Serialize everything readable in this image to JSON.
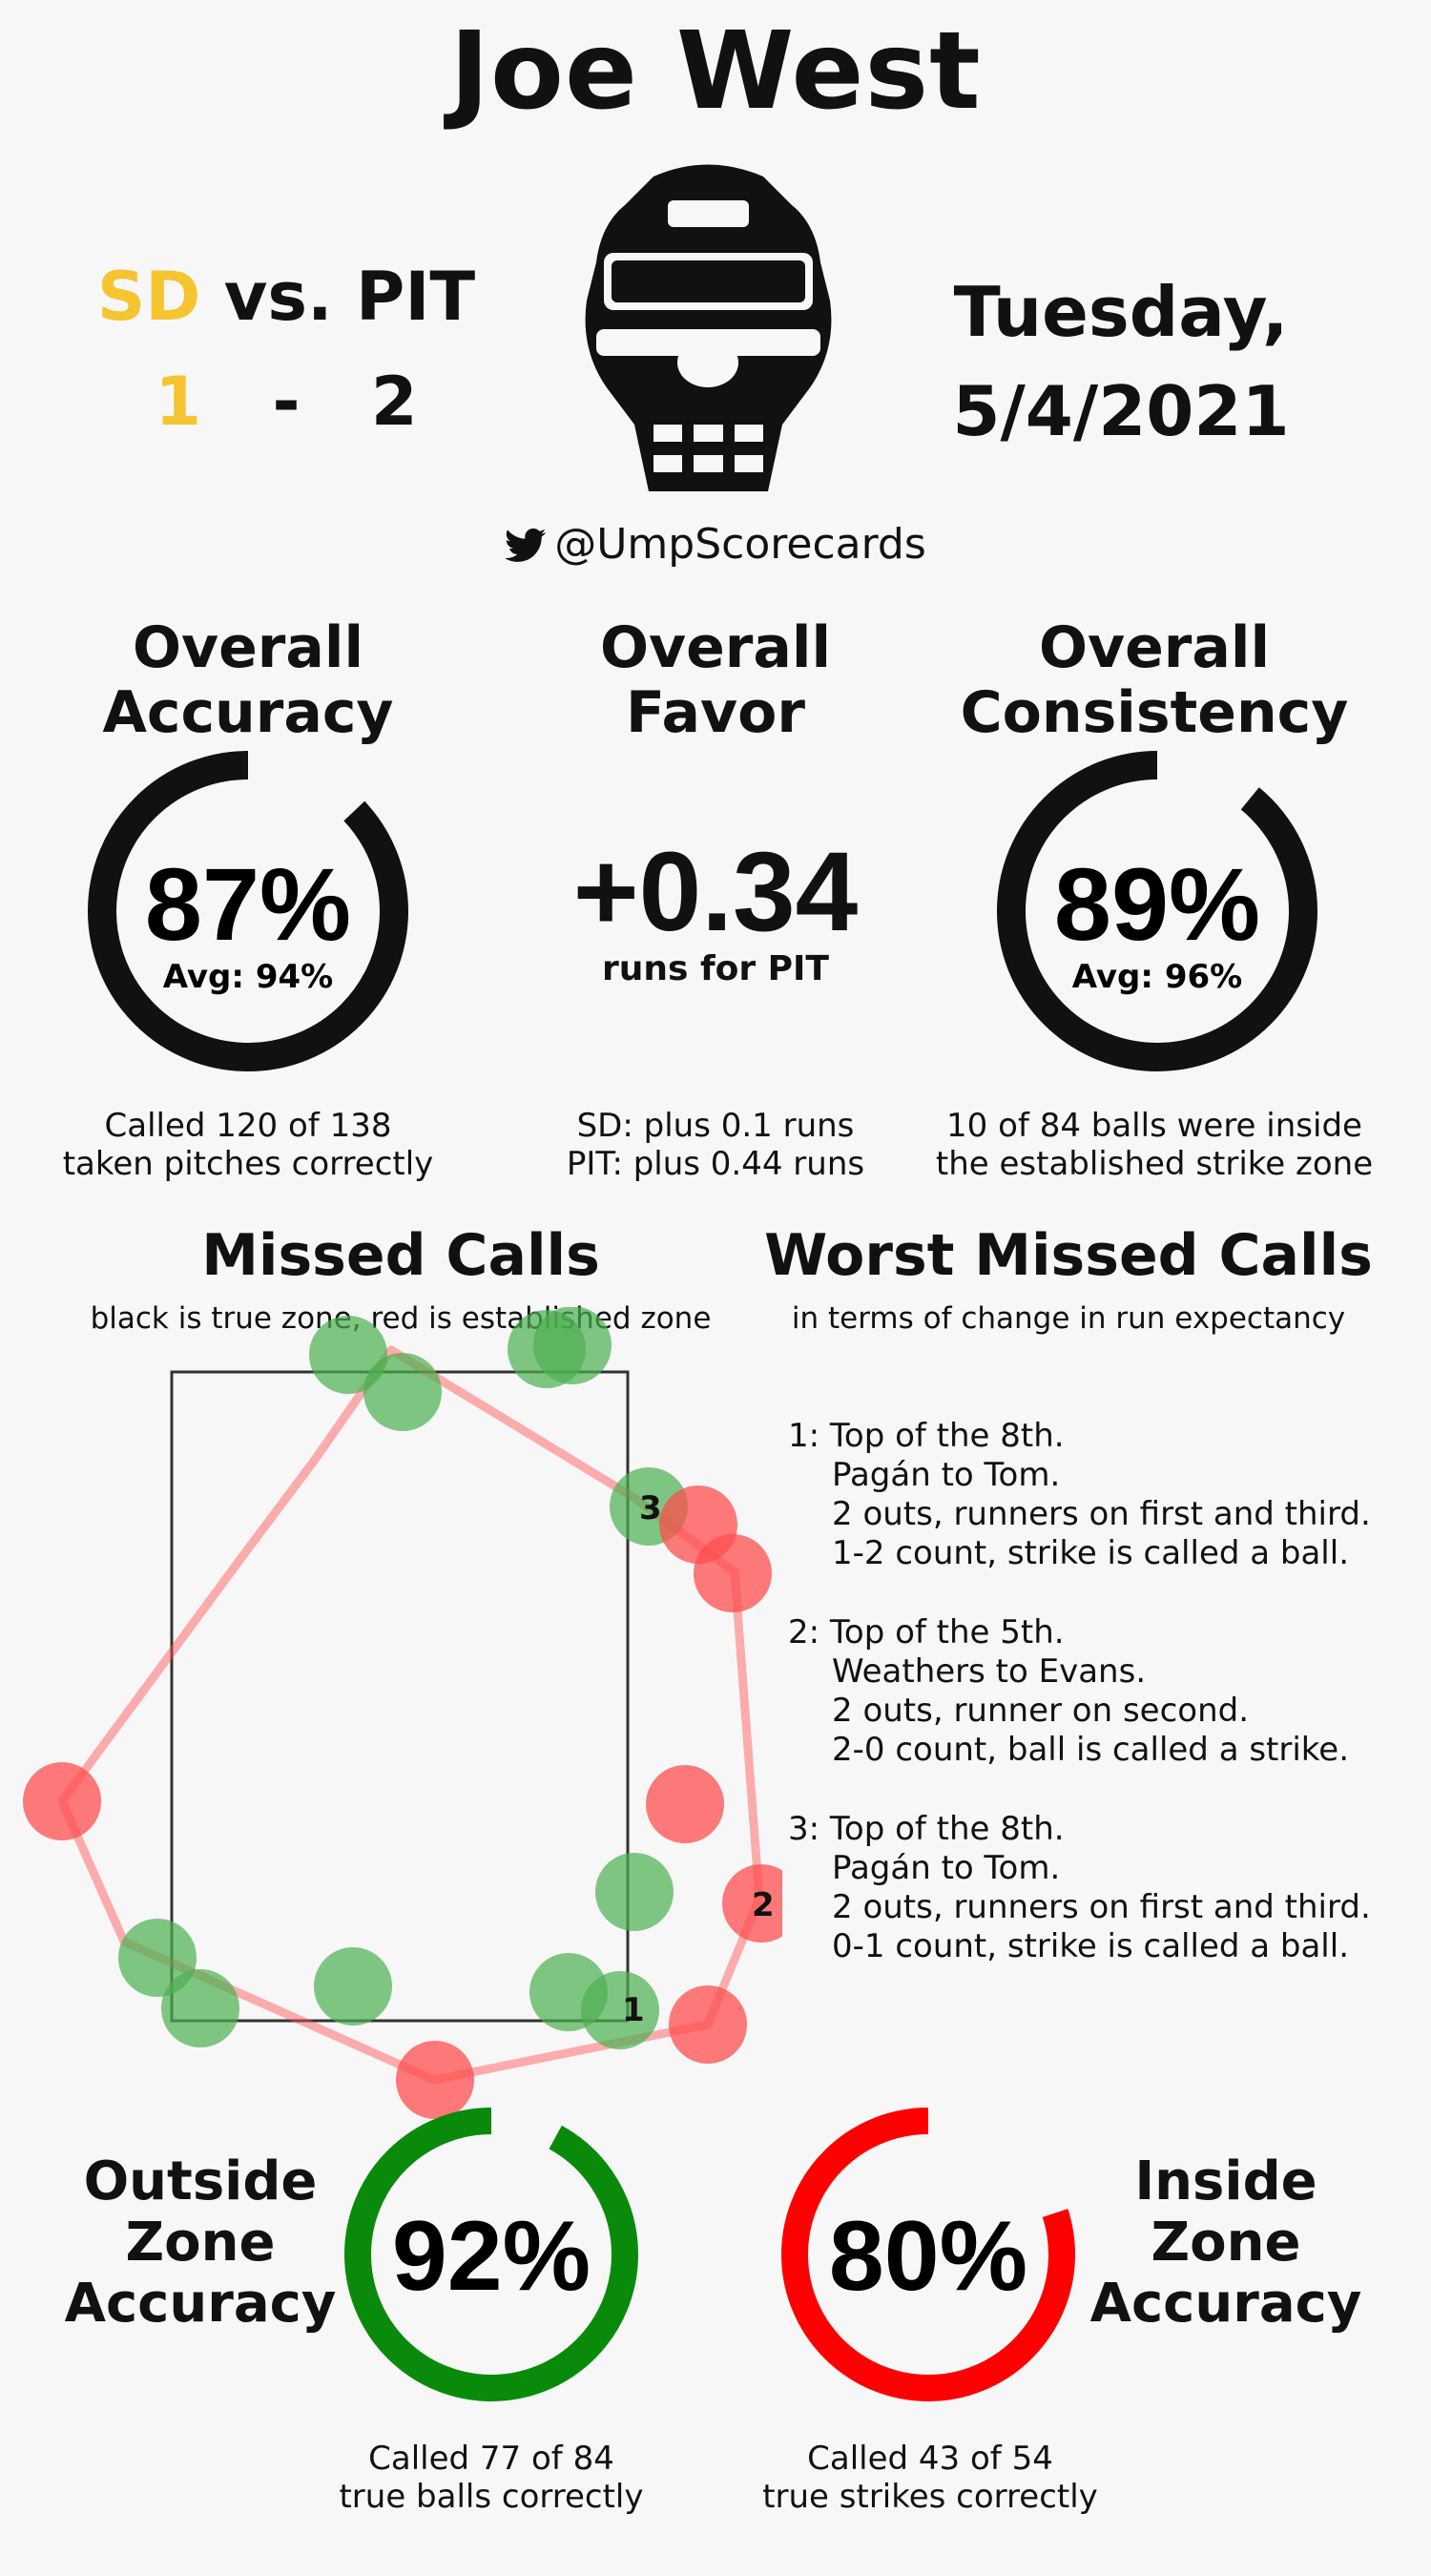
{
  "header": {
    "umpire": "Joe West",
    "away_team": "SD",
    "vs_text": "vs.",
    "home_team": "PIT",
    "away_score": "1",
    "dash": "-",
    "home_score": "2",
    "date_line1": "Tuesday,",
    "date_line2": "5/4/2021",
    "handle": "@UmpScorecards",
    "twitter_icon": "twitter-bird-icon",
    "mask_icon": "umpire-mask-icon"
  },
  "colors": {
    "gold": "#f5c431",
    "green": "#0a8a0a",
    "red": "#ff0000",
    "missed_green": "#4caf50",
    "missed_red": "#ff4d4d"
  },
  "accuracy": {
    "title_line1": "Overall",
    "title_line2": "Accuracy",
    "value": "87%",
    "fraction": 0.87,
    "avg": "Avg: 94%",
    "caption_line1": "Called 120 of 138",
    "caption_line2": "taken pitches correctly"
  },
  "favor": {
    "title_line1": "Overall",
    "title_line2": "Favor",
    "value": "+0.34",
    "unit": "runs for PIT",
    "caption_line1": "SD: plus 0.1 runs",
    "caption_line2": "PIT: plus 0.44 runs"
  },
  "consistency": {
    "title_line1": "Overall",
    "title_line2": "Consistency",
    "value": "89%",
    "fraction": 0.89,
    "avg": "Avg: 96%",
    "caption_line1": "10 of 84 balls were inside",
    "caption_line2": "the established strike zone"
  },
  "missed": {
    "title": "Missed Calls",
    "subtitle": "black is true zone, red is established zone",
    "labels": [
      "1",
      "2",
      "3"
    ]
  },
  "worst": {
    "title": "Worst Missed Calls",
    "subtitle": "in terms of change in run expectancy",
    "calls": [
      {
        "head": "1: Top of the 8th.",
        "l2": "Pagán to Tom.",
        "l3": "2 outs, runners on first and third.",
        "l4": "1-2 count, strike is called a ball."
      },
      {
        "head": "2: Top of the 5th.",
        "l2": "Weathers to Evans.",
        "l3": "2 outs, runner on second.",
        "l4": "2-0 count, ball is called a strike."
      },
      {
        "head": "3: Top of the 8th.",
        "l2": "Pagán to Tom.",
        "l3": "2 outs, runners on first and third.",
        "l4": "0-1 count, strike is called a ball."
      }
    ]
  },
  "outside": {
    "title_line1": "Outside",
    "title_line2": "Zone",
    "title_line3": "Accuracy",
    "value": "92%",
    "fraction": 0.92,
    "caption_line1": "Called 77 of 84",
    "caption_line2": "true balls correctly"
  },
  "inside": {
    "title_line1": "Inside",
    "title_line2": "Zone",
    "title_line3": "Accuracy",
    "value": "80%",
    "fraction": 0.8,
    "caption_line1": "Called 43 of 54",
    "caption_line2": "true strikes correctly"
  }
}
